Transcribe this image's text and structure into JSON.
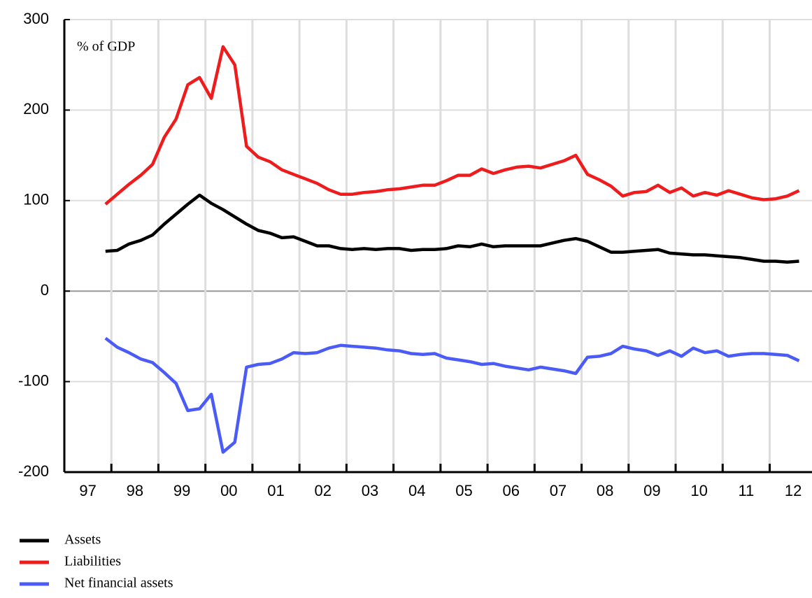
{
  "chart_data": {
    "type": "line",
    "annotation": "% of GDP",
    "x": [
      1997.875,
      1998.125,
      1998.375,
      1998.625,
      1998.875,
      1999.125,
      1999.375,
      1999.625,
      1999.875,
      2000.125,
      2000.375,
      2000.625,
      2000.875,
      2001.125,
      2001.375,
      2001.625,
      2001.875,
      2002.125,
      2002.375,
      2002.625,
      2002.875,
      2003.125,
      2003.375,
      2003.625,
      2003.875,
      2004.125,
      2004.375,
      2004.625,
      2004.875,
      2005.125,
      2005.375,
      2005.625,
      2005.875,
      2006.125,
      2006.375,
      2006.625,
      2006.875,
      2007.125,
      2007.375,
      2007.625,
      2007.875,
      2008.125,
      2008.375,
      2008.625,
      2008.875,
      2009.125,
      2009.375,
      2009.625,
      2009.875,
      2010.125,
      2010.375,
      2010.625,
      2010.875,
      2011.125,
      2011.375,
      2011.625,
      2011.875,
      2012.125,
      2012.375,
      2012.625
    ],
    "series": [
      {
        "name": "Assets",
        "color": "#000000",
        "values": [
          44,
          45,
          52,
          56,
          62,
          74,
          85,
          96,
          106,
          97,
          90,
          82,
          74,
          67,
          64,
          59,
          60,
          55,
          50,
          50,
          47,
          46,
          47,
          46,
          47,
          47,
          45,
          46,
          46,
          47,
          50,
          49,
          52,
          49,
          50,
          50,
          50,
          50,
          53,
          56,
          58,
          55,
          49,
          43,
          43,
          44,
          45,
          46,
          42,
          41,
          40,
          40,
          39,
          38,
          37,
          35,
          33,
          33,
          32,
          33
        ]
      },
      {
        "name": "Liabilities",
        "color": "#ee1c1c",
        "values": [
          96,
          107,
          118,
          128,
          140,
          170,
          190,
          228,
          236,
          213,
          270,
          250,
          160,
          148,
          143,
          134,
          129,
          124,
          119,
          112,
          107,
          107,
          109,
          110,
          112,
          113,
          115,
          117,
          117,
          122,
          128,
          128,
          135,
          130,
          134,
          137,
          138,
          136,
          140,
          144,
          150,
          129,
          123,
          116,
          105,
          109,
          110,
          117,
          109,
          114,
          105,
          109,
          106,
          111,
          107,
          103,
          101,
          102,
          105,
          111
        ]
      },
      {
        "name": "Net financial assets",
        "color": "#4a5cf5",
        "values": [
          -52,
          -62,
          -68,
          -75,
          -79,
          -90,
          -102,
          -132,
          -130,
          -114,
          -178,
          -167,
          -84,
          -81,
          -80,
          -75,
          -68,
          -69,
          -68,
          -63,
          -60,
          -61,
          -62,
          -63,
          -65,
          -66,
          -69,
          -70,
          -69,
          -74,
          -76,
          -78,
          -81,
          -80,
          -83,
          -85,
          -87,
          -84,
          -86,
          -88,
          -91,
          -73,
          -72,
          -69,
          -61,
          -64,
          -66,
          -71,
          -66,
          -72,
          -63,
          -68,
          -66,
          -72,
          -70,
          -69,
          -69,
          -70,
          -71,
          -77
        ]
      }
    ],
    "xlim": [
      1997,
      2012.9
    ],
    "xticks": [
      {
        "value": 1997.5,
        "label": "97"
      },
      {
        "value": 1998.5,
        "label": "98"
      },
      {
        "value": 1999.5,
        "label": "99"
      },
      {
        "value": 2000.5,
        "label": "00"
      },
      {
        "value": 2001.5,
        "label": "01"
      },
      {
        "value": 2002.5,
        "label": "02"
      },
      {
        "value": 2003.5,
        "label": "03"
      },
      {
        "value": 2004.5,
        "label": "04"
      },
      {
        "value": 2005.5,
        "label": "05"
      },
      {
        "value": 2006.5,
        "label": "06"
      },
      {
        "value": 2007.5,
        "label": "07"
      },
      {
        "value": 2008.5,
        "label": "08"
      },
      {
        "value": 2009.5,
        "label": "09"
      },
      {
        "value": 2010.5,
        "label": "10"
      },
      {
        "value": 2011.5,
        "label": "11"
      },
      {
        "value": 2012.5,
        "label": "12"
      }
    ],
    "ylim": [
      -200,
      300
    ],
    "yticks": [
      -200,
      -100,
      0,
      100,
      200,
      300
    ],
    "grid": true
  }
}
